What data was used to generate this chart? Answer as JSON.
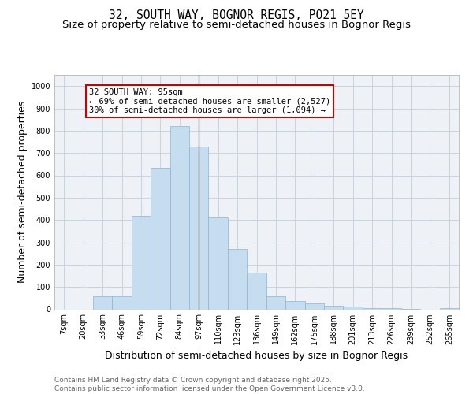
{
  "title_line1": "32, SOUTH WAY, BOGNOR REGIS, PO21 5EY",
  "title_line2": "Size of property relative to semi-detached houses in Bognor Regis",
  "xlabel": "Distribution of semi-detached houses by size in Bognor Regis",
  "ylabel": "Number of semi-detached properties",
  "categories": [
    "7sqm",
    "20sqm",
    "33sqm",
    "46sqm",
    "59sqm",
    "72sqm",
    "84sqm",
    "97sqm",
    "110sqm",
    "123sqm",
    "136sqm",
    "149sqm",
    "162sqm",
    "175sqm",
    "188sqm",
    "201sqm",
    "213sqm",
    "226sqm",
    "239sqm",
    "252sqm",
    "265sqm"
  ],
  "values": [
    0,
    0,
    60,
    60,
    420,
    635,
    820,
    730,
    410,
    270,
    165,
    60,
    38,
    28,
    15,
    12,
    5,
    4,
    2,
    0,
    5
  ],
  "bar_color": "#c5ddef",
  "bar_edge_color": "#8ab4d4",
  "background_color": "#eef2f7",
  "grid_color": "#c8d4e0",
  "annotation_text": "32 SOUTH WAY: 95sqm\n← 69% of semi-detached houses are smaller (2,527)\n30% of semi-detached houses are larger (1,094) →",
  "annotation_box_color": "#ffffff",
  "annotation_box_edge_color": "#cc0000",
  "vline_x": 7.0,
  "ylim": [
    0,
    1050
  ],
  "yticks": [
    0,
    100,
    200,
    300,
    400,
    500,
    600,
    700,
    800,
    900,
    1000
  ],
  "footer_text": "Contains HM Land Registry data © Crown copyright and database right 2025.\nContains public sector information licensed under the Open Government Licence v3.0.",
  "title_fontsize": 10.5,
  "subtitle_fontsize": 9.5,
  "axis_label_fontsize": 9,
  "tick_fontsize": 7,
  "footer_fontsize": 6.5,
  "annotation_fontsize": 7.5
}
